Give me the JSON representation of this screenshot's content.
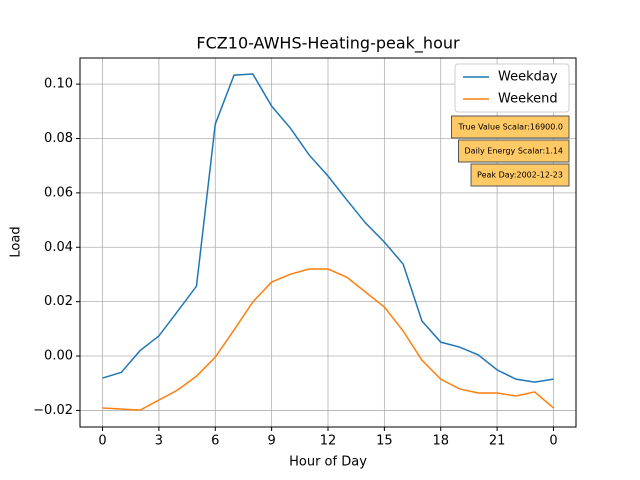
{
  "chart_data": {
    "type": "line",
    "title": "FCZ10-AWHS-Heating-peak_hour",
    "xlabel": "Hour of Day",
    "ylabel": "Load",
    "x": [
      0,
      1,
      2,
      3,
      4,
      5,
      6,
      7,
      8,
      9,
      10,
      11,
      12,
      13,
      14,
      15,
      16,
      17,
      18,
      19,
      20,
      21,
      22,
      23,
      24
    ],
    "series": [
      {
        "name": "Weekday",
        "color": "#1f77b4",
        "values": [
          -0.0081,
          -0.006,
          0.002,
          0.0074,
          0.0165,
          0.0257,
          0.0853,
          0.1033,
          0.1037,
          0.0919,
          0.0838,
          0.0739,
          0.0662,
          0.0574,
          0.0489,
          0.0419,
          0.0338,
          0.0129,
          0.0051,
          0.0033,
          0.0004,
          -0.0051,
          -0.0085,
          -0.0096,
          -0.0085
        ]
      },
      {
        "name": "Weekend",
        "color": "#ff7f0e",
        "values": [
          -0.0191,
          -0.0195,
          -0.0199,
          -0.0162,
          -0.0125,
          -0.0074,
          -0.0004,
          0.0096,
          0.0199,
          0.0272,
          0.0301,
          0.032,
          0.032,
          0.029,
          0.0235,
          0.018,
          0.0092,
          -0.0015,
          -0.0085,
          -0.0121,
          -0.0136,
          -0.0136,
          -0.0147,
          -0.0132,
          -0.0191
        ]
      }
    ],
    "xlim": [
      -1.2,
      25.2
    ],
    "xticks": [
      0,
      3,
      6,
      9,
      12,
      15,
      18,
      21,
      {
        "value": 24,
        "label": "0"
      }
    ],
    "ylim": [
      -0.0261,
      0.1096
    ],
    "yticks": [
      {
        "value": -0.02,
        "label": "−0.02"
      },
      {
        "value": 0,
        "label": "0.00"
      },
      {
        "value": 0.02,
        "label": "0.02"
      },
      {
        "value": 0.04,
        "label": "0.04"
      },
      {
        "value": 0.06,
        "label": "0.06"
      },
      {
        "value": 0.08,
        "label": "0.08"
      },
      {
        "value": 0.1,
        "label": "0.10"
      }
    ],
    "grid": true,
    "legend": "upper right",
    "annotations": [
      "True Value Scalar:16900.0",
      "Daily Energy Scalar:1.14",
      "Peak Day:2002-12-23"
    ],
    "annotation_color": "#ffc966"
  }
}
